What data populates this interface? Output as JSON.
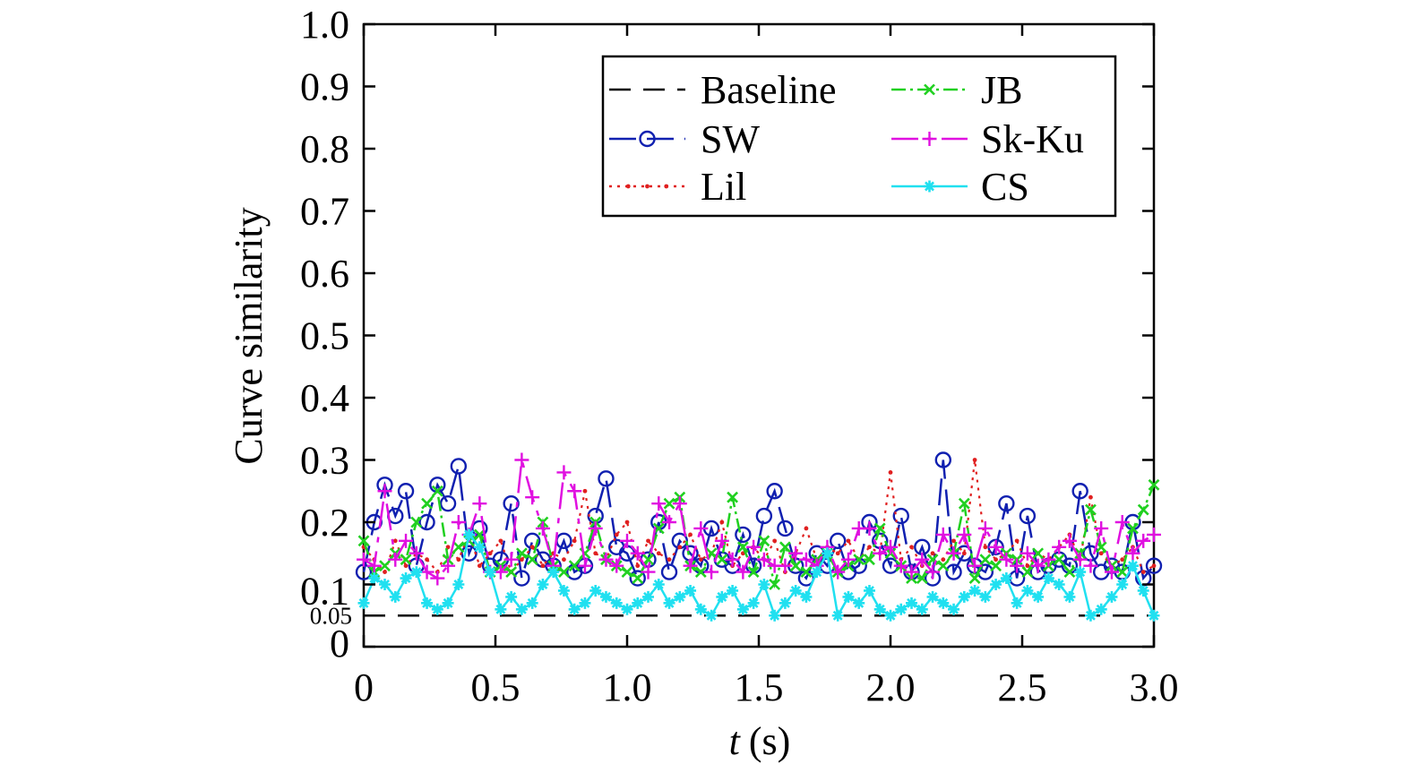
{
  "chart_data": {
    "type": "line",
    "xlabel_var": "t",
    "xlabel_unit": "(s)",
    "ylabel": "Curve similarity",
    "xlim": [
      0,
      3.0
    ],
    "ylim": [
      0,
      1.0
    ],
    "x_ticks": [
      "0",
      "0.5",
      "1.0",
      "1.5",
      "2.0",
      "2.5",
      "3.0"
    ],
    "y_ticks": [
      "0",
      "0.05",
      "0.1",
      "0.2",
      "0.3",
      "0.4",
      "0.5",
      "0.6",
      "0.7",
      "0.8",
      "0.9",
      "1.0"
    ],
    "legend_position": "top-right",
    "x": [
      0.0,
      0.04,
      0.08,
      0.12,
      0.16,
      0.2,
      0.24,
      0.28,
      0.32,
      0.36,
      0.4,
      0.44,
      0.48,
      0.52,
      0.56,
      0.6,
      0.64,
      0.68,
      0.72,
      0.76,
      0.8,
      0.84,
      0.88,
      0.92,
      0.96,
      1.0,
      1.04,
      1.08,
      1.12,
      1.16,
      1.2,
      1.24,
      1.28,
      1.32,
      1.36,
      1.4,
      1.44,
      1.48,
      1.52,
      1.56,
      1.6,
      1.64,
      1.68,
      1.72,
      1.76,
      1.8,
      1.84,
      1.88,
      1.92,
      1.96,
      2.0,
      2.04,
      2.08,
      2.12,
      2.16,
      2.2,
      2.24,
      2.28,
      2.32,
      2.36,
      2.4,
      2.44,
      2.48,
      2.52,
      2.56,
      2.6,
      2.64,
      2.68,
      2.72,
      2.76,
      2.8,
      2.84,
      2.88,
      2.92,
      2.96,
      3.0
    ],
    "series": [
      {
        "name": "Baseline",
        "color": "#000000",
        "dash": "24,14",
        "marker": "none",
        "constant": 0.05
      },
      {
        "name": "SW",
        "color": "#1020b0",
        "dash": "30,12",
        "marker": "circle",
        "values": [
          0.12,
          0.2,
          0.26,
          0.21,
          0.25,
          0.13,
          0.2,
          0.26,
          0.23,
          0.29,
          0.15,
          0.19,
          0.13,
          0.14,
          0.23,
          0.11,
          0.17,
          0.14,
          0.13,
          0.17,
          0.12,
          0.13,
          0.21,
          0.27,
          0.16,
          0.15,
          0.11,
          0.14,
          0.2,
          0.12,
          0.17,
          0.15,
          0.13,
          0.19,
          0.14,
          0.13,
          0.18,
          0.13,
          0.21,
          0.25,
          0.19,
          0.13,
          0.11,
          0.15,
          0.13,
          0.17,
          0.12,
          0.13,
          0.2,
          0.17,
          0.13,
          0.21,
          0.12,
          0.16,
          0.11,
          0.3,
          0.12,
          0.15,
          0.13,
          0.12,
          0.16,
          0.23,
          0.11,
          0.21,
          0.12,
          0.13,
          0.14,
          0.13,
          0.25,
          0.15,
          0.12,
          0.13,
          0.12,
          0.2,
          0.11,
          0.13
        ]
      },
      {
        "name": "Lil",
        "color": "#e02020",
        "dash": "3,6",
        "marker": "dot",
        "values": [
          0.16,
          0.14,
          0.12,
          0.17,
          0.13,
          0.15,
          0.14,
          0.12,
          0.16,
          0.14,
          0.18,
          0.13,
          0.15,
          0.17,
          0.12,
          0.14,
          0.16,
          0.13,
          0.15,
          0.14,
          0.17,
          0.25,
          0.15,
          0.14,
          0.18,
          0.2,
          0.13,
          0.17,
          0.15,
          0.14,
          0.16,
          0.18,
          0.14,
          0.15,
          0.2,
          0.13,
          0.15,
          0.16,
          0.14,
          0.17,
          0.12,
          0.15,
          0.19,
          0.14,
          0.16,
          0.15,
          0.17,
          0.14,
          0.16,
          0.15,
          0.28,
          0.14,
          0.16,
          0.13,
          0.15,
          0.14,
          0.17,
          0.15,
          0.3,
          0.16,
          0.14,
          0.15,
          0.17,
          0.13,
          0.15,
          0.14,
          0.16,
          0.18,
          0.14,
          0.24,
          0.15,
          0.13,
          0.14,
          0.16,
          0.12,
          0.13
        ]
      },
      {
        "name": "JB",
        "color": "#20d020",
        "dash": "16,5,3,5",
        "marker": "x",
        "values": [
          0.17,
          0.12,
          0.13,
          0.15,
          0.14,
          0.2,
          0.23,
          0.25,
          0.14,
          0.16,
          0.17,
          0.18,
          0.12,
          0.13,
          0.12,
          0.15,
          0.14,
          0.2,
          0.13,
          0.12,
          0.13,
          0.15,
          0.2,
          0.14,
          0.13,
          0.12,
          0.11,
          0.14,
          0.19,
          0.23,
          0.24,
          0.13,
          0.12,
          0.15,
          0.14,
          0.24,
          0.16,
          0.12,
          0.17,
          0.1,
          0.16,
          0.13,
          0.12,
          0.14,
          0.15,
          0.12,
          0.13,
          0.14,
          0.14,
          0.19,
          0.15,
          0.13,
          0.11,
          0.11,
          0.14,
          0.13,
          0.15,
          0.23,
          0.11,
          0.14,
          0.13,
          0.15,
          0.14,
          0.12,
          0.15,
          0.13,
          0.14,
          0.12,
          0.15,
          0.22,
          0.16,
          0.13,
          0.12,
          0.19,
          0.22,
          0.26
        ]
      },
      {
        "name": "Sk-Ku",
        "color": "#e010e0",
        "dash": "30,10,6,10",
        "marker": "plus",
        "values": [
          0.14,
          0.13,
          0.25,
          0.14,
          0.17,
          0.15,
          0.12,
          0.11,
          0.13,
          0.2,
          0.18,
          0.23,
          0.12,
          0.12,
          0.14,
          0.3,
          0.24,
          0.19,
          0.13,
          0.28,
          0.25,
          0.13,
          0.19,
          0.14,
          0.13,
          0.17,
          0.15,
          0.12,
          0.23,
          0.2,
          0.23,
          0.13,
          0.19,
          0.12,
          0.17,
          0.14,
          0.12,
          0.16,
          0.14,
          0.13,
          0.13,
          0.15,
          0.14,
          0.13,
          0.16,
          0.12,
          0.14,
          0.19,
          0.19,
          0.15,
          0.16,
          0.13,
          0.12,
          0.14,
          0.12,
          0.18,
          0.15,
          0.18,
          0.13,
          0.19,
          0.16,
          0.14,
          0.13,
          0.15,
          0.13,
          0.14,
          0.16,
          0.17,
          0.14,
          0.13,
          0.19,
          0.12,
          0.2,
          0.15,
          0.17,
          0.18
        ]
      },
      {
        "name": "CS",
        "color": "#20e0f0",
        "dash": "none",
        "marker": "star",
        "values": [
          0.07,
          0.11,
          0.1,
          0.08,
          0.11,
          0.12,
          0.07,
          0.06,
          0.07,
          0.1,
          0.18,
          0.16,
          0.12,
          0.06,
          0.08,
          0.06,
          0.07,
          0.1,
          0.12,
          0.09,
          0.06,
          0.07,
          0.09,
          0.08,
          0.07,
          0.06,
          0.07,
          0.08,
          0.1,
          0.07,
          0.08,
          0.09,
          0.06,
          0.05,
          0.08,
          0.09,
          0.06,
          0.07,
          0.1,
          0.05,
          0.07,
          0.09,
          0.08,
          0.12,
          0.15,
          0.05,
          0.08,
          0.07,
          0.09,
          0.06,
          0.05,
          0.06,
          0.07,
          0.06,
          0.08,
          0.07,
          0.06,
          0.08,
          0.09,
          0.08,
          0.1,
          0.11,
          0.07,
          0.09,
          0.08,
          0.11,
          0.1,
          0.08,
          0.12,
          0.05,
          0.06,
          0.08,
          0.1,
          0.13,
          0.09,
          0.05
        ]
      }
    ]
  }
}
